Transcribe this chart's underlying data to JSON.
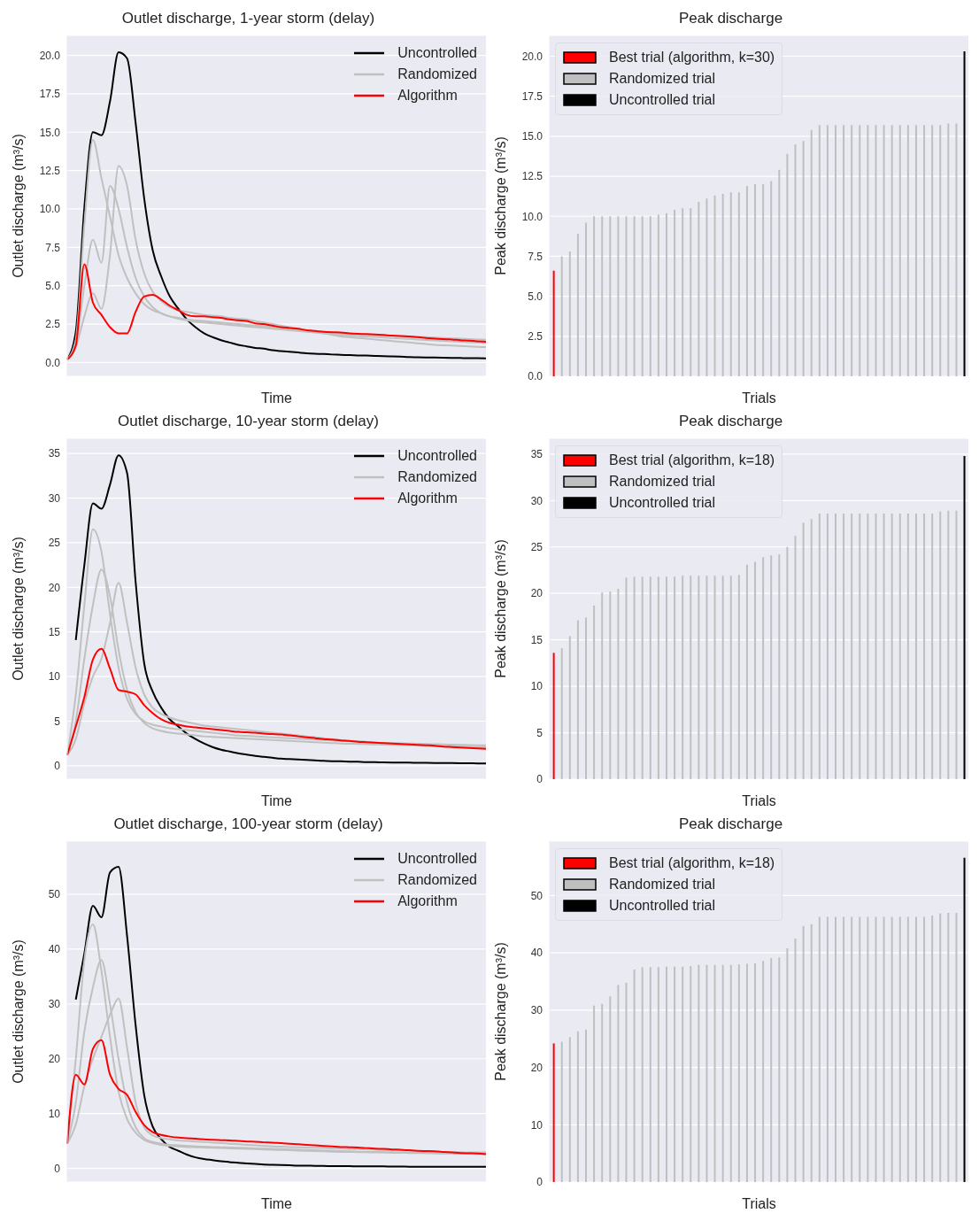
{
  "chart_data": [
    {
      "type": "line",
      "title": "Outlet discharge, 1-year storm (delay)",
      "xlabel": "Time",
      "ylabel": "Outlet discharge (m³/s)",
      "legend": "top right",
      "grid": "y",
      "tick_labels": "y",
      "ylim": [
        -0.9,
        21.3
      ],
      "yticks": [
        {
          "value": 0,
          "label": "0.0"
        },
        2.5,
        {
          "value": 5,
          "label": "5.0"
        },
        7.5,
        {
          "value": 10,
          "label": "10.0"
        },
        12.5,
        {
          "value": 15,
          "label": "15.0"
        },
        17.5,
        {
          "value": 20,
          "label": "20.0"
        }
      ],
      "categories": [
        null,
        null,
        null,
        null,
        null,
        null,
        null,
        null,
        null,
        null,
        null,
        null,
        null,
        null,
        null,
        null,
        null,
        null,
        null,
        null,
        null,
        null,
        null,
        null,
        null,
        null,
        null,
        null,
        null,
        null,
        null,
        null,
        null,
        null,
        null,
        null,
        null,
        null,
        null,
        null,
        null,
        null,
        null,
        null,
        null,
        null,
        null,
        null,
        null,
        null
      ],
      "series": [
        {
          "name": "Uncontrolled",
          "color": "#000000",
          "values": [
            0.2,
            2.0,
            10.1,
            15.0,
            14.8,
            17.0,
            20.2,
            19.8,
            15.6,
            10.7,
            7.3,
            5.6,
            4.3,
            3.5,
            2.8,
            2.3,
            1.9,
            1.65,
            1.45,
            1.3,
            1.15,
            1.05,
            0.95,
            0.9,
            0.8,
            0.75,
            0.7,
            0.65,
            0.6,
            0.57,
            0.55,
            0.52,
            0.5,
            0.48,
            0.46,
            0.45,
            0.43,
            0.41,
            0.4,
            0.38,
            0.35,
            0.34,
            0.33,
            0.32,
            0.31,
            0.3,
            0.29,
            0.28,
            0.28,
            0.27
          ]
        },
        {
          "name": "Randomized",
          "color": "#c0c0c0",
          "values": [
            0.2,
            1.5,
            9.0,
            14.5,
            12.0,
            9.5,
            7.0,
            5.5,
            4.5,
            3.8,
            3.4,
            3.2,
            3.0,
            2.9,
            2.8,
            2.75,
            2.7,
            2.65,
            2.6,
            2.55,
            2.5,
            2.45,
            2.4,
            2.35,
            2.3,
            2.25,
            2.2,
            2.15,
            2.1,
            2.05,
            2.0,
            1.95,
            1.9,
            1.88,
            1.85,
            1.82,
            1.8,
            1.77,
            1.75,
            1.72,
            1.7,
            1.67,
            1.65,
            1.62,
            1.6,
            1.57,
            1.55,
            1.52,
            1.5,
            1.48
          ]
        },
        {
          "color": "#c0c0c0",
          "values": [
            0.2,
            1.2,
            5.0,
            8.0,
            6.5,
            11.5,
            10.0,
            7.5,
            5.5,
            4.3,
            3.6,
            3.2,
            3.0,
            2.85,
            2.75,
            2.65,
            2.6,
            2.55,
            2.5,
            2.45,
            2.4,
            2.35,
            2.3,
            2.25,
            2.2,
            2.15,
            2.1,
            2.05,
            2.0,
            1.95,
            1.9,
            1.85,
            1.8,
            1.77,
            1.73,
            1.7,
            1.66,
            1.63,
            1.6,
            1.57,
            1.54,
            1.5,
            1.47,
            1.44,
            1.41,
            1.38,
            1.35,
            1.32,
            1.3,
            1.28
          ]
        },
        {
          "color": "#c0c0c0",
          "values": [
            0.2,
            1.0,
            3.0,
            4.5,
            3.5,
            7.0,
            12.8,
            11.5,
            8.0,
            5.8,
            4.6,
            4.0,
            3.6,
            3.4,
            3.3,
            3.2,
            3.1,
            3.05,
            3.0,
            2.9,
            2.85,
            2.8,
            2.7,
            2.6,
            2.5,
            2.4,
            2.3,
            2.2,
            2.1,
            2.0,
            1.9,
            1.8,
            1.7,
            1.65,
            1.6,
            1.55,
            1.5,
            1.45,
            1.4,
            1.35,
            1.3,
            1.25,
            1.2,
            1.15,
            1.12,
            1.1,
            1.07,
            1.05,
            1.02,
            1.0
          ]
        },
        {
          "name": "Algorithm",
          "color": "#ff0000",
          "values": [
            0.2,
            1.1,
            6.4,
            3.9,
            3.1,
            2.3,
            1.9,
            1.9,
            3.3,
            4.3,
            4.4,
            4.1,
            3.7,
            3.4,
            3.1,
            3.0,
            3.0,
            2.95,
            2.9,
            2.8,
            2.75,
            2.7,
            2.55,
            2.5,
            2.4,
            2.3,
            2.25,
            2.2,
            2.1,
            2.05,
            2.0,
            1.97,
            1.95,
            1.9,
            1.87,
            1.85,
            1.82,
            1.8,
            1.75,
            1.72,
            1.7,
            1.65,
            1.6,
            1.55,
            1.52,
            1.5,
            1.45,
            1.42,
            1.38,
            1.35
          ]
        }
      ]
    },
    {
      "type": "bar",
      "stacked": true,
      "title": "Peak discharge",
      "xlabel": "Trials",
      "ylabel": "Peak discharge (m³/s)",
      "legend": "top left",
      "grid": "y",
      "tick_labels": "y",
      "ylim": [
        0,
        21.3
      ],
      "yticks": [
        {
          "value": 0,
          "label": "0.0"
        },
        2.5,
        {
          "value": 5,
          "label": "5.0"
        },
        7.5,
        {
          "value": 10,
          "label": "10.0"
        },
        12.5,
        {
          "value": 15,
          "label": "15.0"
        },
        17.5,
        {
          "value": 20,
          "label": "20.0"
        }
      ],
      "categories": [
        null,
        null,
        null,
        null,
        null,
        null,
        null,
        null,
        null,
        null,
        null,
        null,
        null,
        null,
        null,
        null,
        null,
        null,
        null,
        null,
        null,
        null,
        null,
        null,
        null,
        null,
        null,
        null,
        null,
        null,
        null,
        null,
        null,
        null,
        null,
        null,
        null,
        null,
        null,
        null,
        null,
        null,
        null,
        null,
        null,
        null,
        null,
        null,
        null,
        null,
        null,
        null
      ],
      "series": [
        {
          "name": "Best trial (algorithm, k=30)",
          "color": "#ff0000",
          "values": [
            6.6,
            null,
            null,
            null,
            null,
            null,
            null,
            null,
            null,
            null,
            null,
            null,
            null,
            null,
            null,
            null,
            null,
            null,
            null,
            null,
            null,
            null,
            null,
            null,
            null,
            null,
            null,
            null,
            null,
            null,
            null,
            null,
            null,
            null,
            null,
            null,
            null,
            null,
            null,
            null,
            null,
            null,
            null,
            null,
            null,
            null,
            null,
            null,
            null,
            null,
            null,
            null
          ]
        },
        {
          "name": "Randomized trial",
          "color": "#bfbfbf",
          "values": [
            null,
            7.5,
            7.8,
            8.9,
            9.6,
            10.0,
            10.0,
            10.0,
            10.0,
            10.0,
            10.0,
            10.0,
            10.0,
            10.1,
            10.2,
            10.4,
            10.5,
            10.5,
            10.9,
            11.1,
            11.3,
            11.4,
            11.5,
            11.5,
            11.9,
            12.0,
            12.0,
            12.2,
            12.9,
            13.9,
            14.5,
            14.7,
            15.4,
            15.7,
            15.7,
            15.7,
            15.7,
            15.7,
            15.7,
            15.7,
            15.7,
            15.7,
            15.7,
            15.7,
            15.7,
            15.7,
            15.7,
            15.7,
            15.7,
            15.8,
            15.8,
            null
          ]
        },
        {
          "name": "Uncontrolled trial",
          "color": "#000000",
          "values": [
            null,
            null,
            null,
            null,
            null,
            null,
            null,
            null,
            null,
            null,
            null,
            null,
            null,
            null,
            null,
            null,
            null,
            null,
            null,
            null,
            null,
            null,
            null,
            null,
            null,
            null,
            null,
            null,
            null,
            null,
            null,
            null,
            null,
            null,
            null,
            null,
            null,
            null,
            null,
            null,
            null,
            null,
            null,
            null,
            null,
            null,
            null,
            null,
            null,
            null,
            null,
            20.3
          ]
        }
      ]
    },
    {
      "type": "line",
      "title": "Outlet discharge, 10-year storm (delay)",
      "xlabel": "Time",
      "ylabel": "Outlet discharge (m³/s)",
      "legend": "top right",
      "grid": "y",
      "tick_labels": "y",
      "ylim": [
        -1.5,
        36.7
      ],
      "yticks": [
        0,
        5,
        10,
        15,
        20,
        25,
        30,
        35
      ],
      "categories": [
        null,
        null,
        null,
        null,
        null,
        null,
        null,
        null,
        null,
        null,
        null,
        null,
        null,
        null,
        null,
        null,
        null,
        null,
        null,
        null,
        null,
        null,
        null,
        null,
        null,
        null,
        null,
        null,
        null,
        null,
        null,
        null,
        null,
        null,
        null,
        null,
        null,
        null,
        null,
        null,
        null,
        null,
        null,
        null,
        null,
        null,
        null,
        null,
        null,
        null
      ],
      "series": [
        {
          "name": "Uncontrolled",
          "color": "#000000",
          "values": [
            null,
            14.1,
            22.5,
            29.4,
            28.8,
            31.5,
            34.8,
            32.8,
            20.6,
            11.5,
            8.3,
            6.5,
            5.2,
            4.4,
            3.6,
            3.0,
            2.5,
            2.1,
            1.8,
            1.6,
            1.4,
            1.25,
            1.1,
            1.0,
            0.9,
            0.8,
            0.75,
            0.7,
            0.65,
            0.6,
            0.55,
            0.52,
            0.5,
            0.47,
            0.45,
            0.4,
            0.4,
            0.38,
            0.37,
            0.36,
            0.35,
            0.34,
            0.33,
            0.32,
            0.31,
            0.3,
            0.29,
            0.28,
            0.27,
            0.25
          ]
        },
        {
          "name": "Randomized",
          "color": "#c0c0c0",
          "values": [
            1.2,
            8.0,
            18.0,
            26.5,
            24.0,
            17.0,
            11.0,
            7.5,
            5.8,
            5.0,
            4.6,
            4.4,
            4.2,
            4.1,
            4.0,
            3.9,
            3.8,
            3.7,
            3.6,
            3.5,
            3.4,
            3.35,
            3.3,
            3.25,
            3.2,
            3.15,
            3.1,
            3.05,
            3.0,
            2.95,
            2.9,
            2.85,
            2.8,
            2.75,
            2.7,
            2.65,
            2.6,
            2.57,
            2.55,
            2.52,
            2.5,
            2.47,
            2.45,
            2.42,
            2.4,
            2.37,
            2.35,
            2.32,
            2.3,
            2.3
          ]
        },
        {
          "color": "#c0c0c0",
          "values": [
            1.2,
            5.0,
            12.0,
            18.0,
            22.0,
            19.0,
            13.0,
            8.5,
            6.0,
            4.8,
            4.2,
            3.9,
            3.7,
            3.6,
            3.5,
            3.4,
            3.3,
            3.25,
            3.2,
            3.15,
            3.1,
            3.05,
            3.0,
            2.95,
            2.9,
            2.85,
            2.8,
            2.75,
            2.7,
            2.65,
            2.6,
            2.55,
            2.5,
            2.47,
            2.45,
            2.42,
            2.4,
            2.37,
            2.35,
            2.32,
            2.3,
            2.27,
            2.25,
            2.22,
            2.2,
            2.17,
            2.15,
            2.12,
            2.1,
            2.1
          ]
        },
        {
          "color": "#c0c0c0",
          "values": [
            1.2,
            3.0,
            7.0,
            10.0,
            12.0,
            16.0,
            20.5,
            16.0,
            11.0,
            8.0,
            6.5,
            5.8,
            5.4,
            5.1,
            4.9,
            4.7,
            4.5,
            4.4,
            4.3,
            4.2,
            4.1,
            4.0,
            3.9,
            3.8,
            3.7,
            3.6,
            3.5,
            3.4,
            3.3,
            3.2,
            3.1,
            3.0,
            2.9,
            2.8,
            2.75,
            2.7,
            2.6,
            2.55,
            2.5,
            2.45,
            2.4,
            2.35,
            2.3,
            2.25,
            2.2,
            2.15,
            2.1,
            2.05,
            2.0,
            2.0
          ]
        },
        {
          "name": "Algorithm",
          "color": "#ff0000",
          "values": [
            1.2,
            4.4,
            7.7,
            11.9,
            13.1,
            10.9,
            8.5,
            8.3,
            8.0,
            6.8,
            5.9,
            5.2,
            4.8,
            4.6,
            4.4,
            4.3,
            4.2,
            4.1,
            4.0,
            3.9,
            3.8,
            3.75,
            3.7,
            3.6,
            3.55,
            3.5,
            3.4,
            3.3,
            3.2,
            3.1,
            3.0,
            2.95,
            2.85,
            2.8,
            2.7,
            2.65,
            2.6,
            2.55,
            2.5,
            2.45,
            2.4,
            2.35,
            2.3,
            2.25,
            2.15,
            2.1,
            2.05,
            2.0,
            1.95,
            1.9
          ]
        }
      ]
    },
    {
      "type": "bar",
      "stacked": true,
      "title": "Peak discharge",
      "xlabel": "Trials",
      "ylabel": "Peak discharge (m³/s)",
      "legend": "top left",
      "grid": "y",
      "tick_labels": "y",
      "ylim": [
        0,
        36.7
      ],
      "yticks": [
        0,
        5,
        10,
        15,
        20,
        25,
        30,
        35
      ],
      "categories": [
        null,
        null,
        null,
        null,
        null,
        null,
        null,
        null,
        null,
        null,
        null,
        null,
        null,
        null,
        null,
        null,
        null,
        null,
        null,
        null,
        null,
        null,
        null,
        null,
        null,
        null,
        null,
        null,
        null,
        null,
        null,
        null,
        null,
        null,
        null,
        null,
        null,
        null,
        null,
        null,
        null,
        null,
        null,
        null,
        null,
        null,
        null,
        null,
        null,
        null,
        null,
        null
      ],
      "series": [
        {
          "name": "Best trial (algorithm, k=18)",
          "color": "#ff0000",
          "values": [
            13.6,
            null,
            null,
            null,
            null,
            null,
            null,
            null,
            null,
            null,
            null,
            null,
            null,
            null,
            null,
            null,
            null,
            null,
            null,
            null,
            null,
            null,
            null,
            null,
            null,
            null,
            null,
            null,
            null,
            null,
            null,
            null,
            null,
            null,
            null,
            null,
            null,
            null,
            null,
            null,
            null,
            null,
            null,
            null,
            null,
            null,
            null,
            null,
            null,
            null,
            null,
            null
          ]
        },
        {
          "name": "Randomized trial",
          "color": "#bfbfbf",
          "values": [
            null,
            14.1,
            15.4,
            17.1,
            17.4,
            18.7,
            20.1,
            20.2,
            20.5,
            21.7,
            21.8,
            21.8,
            21.8,
            21.8,
            21.8,
            21.8,
            21.9,
            21.9,
            21.9,
            21.9,
            21.9,
            21.9,
            21.9,
            22.0,
            23.1,
            23.4,
            23.9,
            24.1,
            24.2,
            25.0,
            26.2,
            27.6,
            28.0,
            28.6,
            28.6,
            28.6,
            28.6,
            28.6,
            28.6,
            28.6,
            28.6,
            28.6,
            28.6,
            28.6,
            28.6,
            28.6,
            28.6,
            28.6,
            28.8,
            28.9,
            28.9,
            null
          ]
        },
        {
          "name": "Uncontrolled trial",
          "color": "#000000",
          "values": [
            null,
            null,
            null,
            null,
            null,
            null,
            null,
            null,
            null,
            null,
            null,
            null,
            null,
            null,
            null,
            null,
            null,
            null,
            null,
            null,
            null,
            null,
            null,
            null,
            null,
            null,
            null,
            null,
            null,
            null,
            null,
            null,
            null,
            null,
            null,
            null,
            null,
            null,
            null,
            null,
            null,
            null,
            null,
            null,
            null,
            null,
            null,
            null,
            null,
            null,
            null,
            34.8
          ]
        }
      ]
    },
    {
      "type": "line",
      "title": "Outlet discharge, 100-year storm (delay)",
      "xlabel": "Time",
      "ylabel": "Outlet discharge (m³/s)",
      "legend": "top right",
      "grid": "y",
      "tick_labels": "y",
      "ylim": [
        -2.5,
        59.7
      ],
      "yticks": [
        0,
        10,
        20,
        30,
        40,
        50
      ],
      "categories": [
        null,
        null,
        null,
        null,
        null,
        null,
        null,
        null,
        null,
        null,
        null,
        null,
        null,
        null,
        null,
        null,
        null,
        null,
        null,
        null,
        null,
        null,
        null,
        null,
        null,
        null,
        null,
        null,
        null,
        null,
        null,
        null,
        null,
        null,
        null,
        null,
        null,
        null,
        null,
        null,
        null,
        null,
        null,
        null,
        null,
        null,
        null,
        null,
        null,
        null
      ],
      "series": [
        {
          "name": "Uncontrolled",
          "color": "#000000",
          "values": [
            null,
            30.8,
            39.2,
            47.9,
            45.8,
            54.0,
            55.0,
            42.4,
            26.1,
            13.4,
            7.6,
            5.3,
            3.9,
            3.2,
            2.5,
            2.0,
            1.7,
            1.5,
            1.3,
            1.15,
            1.0,
            0.9,
            0.8,
            0.7,
            0.65,
            0.6,
            0.55,
            0.5,
            0.5,
            0.45,
            0.45,
            0.4,
            0.4,
            0.4,
            0.37,
            0.37,
            0.35,
            0.35,
            0.33,
            0.33,
            0.3,
            0.3,
            0.3,
            0.3,
            0.3,
            0.3,
            0.3,
            0.3,
            0.3,
            0.3
          ]
        },
        {
          "name": "Randomized",
          "color": "#c0c0c0",
          "values": [
            4.5,
            20.0,
            38.0,
            44.5,
            36.0,
            24.0,
            14.0,
            9.0,
            6.5,
            5.2,
            4.6,
            4.3,
            4.1,
            4.0,
            3.9,
            3.85,
            3.8,
            3.75,
            3.7,
            3.65,
            3.6,
            3.55,
            3.5,
            3.45,
            3.4,
            3.35,
            3.3,
            3.25,
            3.2,
            3.15,
            3.1,
            3.05,
            3.0,
            3.0,
            2.95,
            2.95,
            2.9,
            2.9,
            2.85,
            2.85,
            2.8,
            2.8,
            2.75,
            2.75,
            2.7,
            2.7,
            2.65,
            2.65,
            2.6,
            2.6
          ]
        },
        {
          "color": "#c0c0c0",
          "values": [
            4.5,
            12.0,
            25.0,
            33.0,
            38.0,
            30.0,
            20.0,
            12.0,
            7.5,
            5.5,
            4.8,
            4.5,
            4.3,
            4.2,
            4.1,
            4.0,
            3.95,
            3.9,
            3.85,
            3.8,
            3.75,
            3.7,
            3.65,
            3.6,
            3.55,
            3.5,
            3.45,
            3.4,
            3.35,
            3.3,
            3.25,
            3.2,
            3.15,
            3.1,
            3.05,
            3.0,
            3.0,
            2.95,
            2.95,
            2.9,
            2.9,
            2.85,
            2.85,
            2.8,
            2.8,
            2.75,
            2.75,
            2.7,
            2.7,
            2.7
          ]
        },
        {
          "color": "#c0c0c0",
          "values": [
            4.5,
            8.0,
            15.0,
            20.0,
            24.0,
            28.0,
            31.0,
            22.0,
            12.0,
            7.5,
            6.0,
            5.5,
            5.3,
            5.1,
            5.0,
            4.9,
            4.8,
            4.7,
            4.6,
            4.5,
            4.4,
            4.3,
            4.2,
            4.1,
            4.0,
            3.95,
            3.9,
            3.85,
            3.8,
            3.75,
            3.7,
            3.65,
            3.6,
            3.55,
            3.5,
            3.45,
            3.4,
            3.35,
            3.3,
            3.25,
            3.2,
            3.15,
            3.1,
            3.05,
            3.0,
            3.0,
            2.95,
            2.9,
            2.9,
            2.9
          ]
        },
        {
          "name": "Algorithm",
          "color": "#ff0000",
          "values": [
            4.5,
            17.1,
            15.3,
            21.8,
            23.4,
            17.1,
            14.5,
            13.4,
            10.3,
            7.9,
            6.6,
            6.1,
            5.8,
            5.6,
            5.5,
            5.4,
            5.3,
            5.2,
            5.15,
            5.1,
            5.0,
            4.9,
            4.85,
            4.75,
            4.7,
            4.6,
            4.5,
            4.4,
            4.3,
            4.2,
            4.1,
            4.0,
            3.9,
            3.85,
            3.8,
            3.7,
            3.6,
            3.55,
            3.45,
            3.4,
            3.3,
            3.2,
            3.15,
            3.1,
            3.0,
            2.9,
            2.8,
            2.75,
            2.7,
            2.6
          ]
        }
      ]
    },
    {
      "type": "bar",
      "stacked": true,
      "title": "Peak discharge",
      "xlabel": "Trials",
      "ylabel": "Peak discharge (m³/s)",
      "legend": "top left",
      "grid": "y",
      "tick_labels": "y",
      "ylim": [
        0,
        59.5
      ],
      "yticks": [
        0,
        10,
        20,
        30,
        40,
        50
      ],
      "categories": [
        null,
        null,
        null,
        null,
        null,
        null,
        null,
        null,
        null,
        null,
        null,
        null,
        null,
        null,
        null,
        null,
        null,
        null,
        null,
        null,
        null,
        null,
        null,
        null,
        null,
        null,
        null,
        null,
        null,
        null,
        null,
        null,
        null,
        null,
        null,
        null,
        null,
        null,
        null,
        null,
        null,
        null,
        null,
        null,
        null,
        null,
        null,
        null,
        null,
        null,
        null,
        null
      ],
      "series": [
        {
          "name": "Best trial (algorithm, k=18)",
          "color": "#ff0000",
          "values": [
            24.2,
            null,
            null,
            null,
            null,
            null,
            null,
            null,
            null,
            null,
            null,
            null,
            null,
            null,
            null,
            null,
            null,
            null,
            null,
            null,
            null,
            null,
            null,
            null,
            null,
            null,
            null,
            null,
            null,
            null,
            null,
            null,
            null,
            null,
            null,
            null,
            null,
            null,
            null,
            null,
            null,
            null,
            null,
            null,
            null,
            null,
            null,
            null,
            null,
            null,
            null,
            null
          ]
        },
        {
          "name": "Randomized trial",
          "color": "#bfbfbf",
          "values": [
            null,
            24.5,
            25.3,
            26.3,
            26.6,
            30.8,
            31.1,
            32.4,
            34.4,
            34.8,
            37.1,
            37.5,
            37.5,
            37.5,
            37.6,
            37.6,
            37.6,
            37.7,
            37.9,
            37.9,
            37.9,
            37.9,
            37.9,
            38.0,
            38.1,
            38.2,
            38.6,
            39.1,
            39.2,
            40.8,
            42.5,
            44.7,
            45.0,
            46.3,
            46.3,
            46.3,
            46.3,
            46.3,
            46.3,
            46.3,
            46.3,
            46.3,
            46.3,
            46.3,
            46.3,
            46.3,
            46.3,
            46.5,
            46.9,
            47.0,
            47.0,
            null
          ]
        },
        {
          "name": "Uncontrolled trial",
          "color": "#000000",
          "values": [
            null,
            null,
            null,
            null,
            null,
            null,
            null,
            null,
            null,
            null,
            null,
            null,
            null,
            null,
            null,
            null,
            null,
            null,
            null,
            null,
            null,
            null,
            null,
            null,
            null,
            null,
            null,
            null,
            null,
            null,
            null,
            null,
            null,
            null,
            null,
            null,
            null,
            null,
            null,
            null,
            null,
            null,
            null,
            null,
            null,
            null,
            null,
            null,
            null,
            null,
            null,
            56.6
          ]
        }
      ]
    }
  ]
}
